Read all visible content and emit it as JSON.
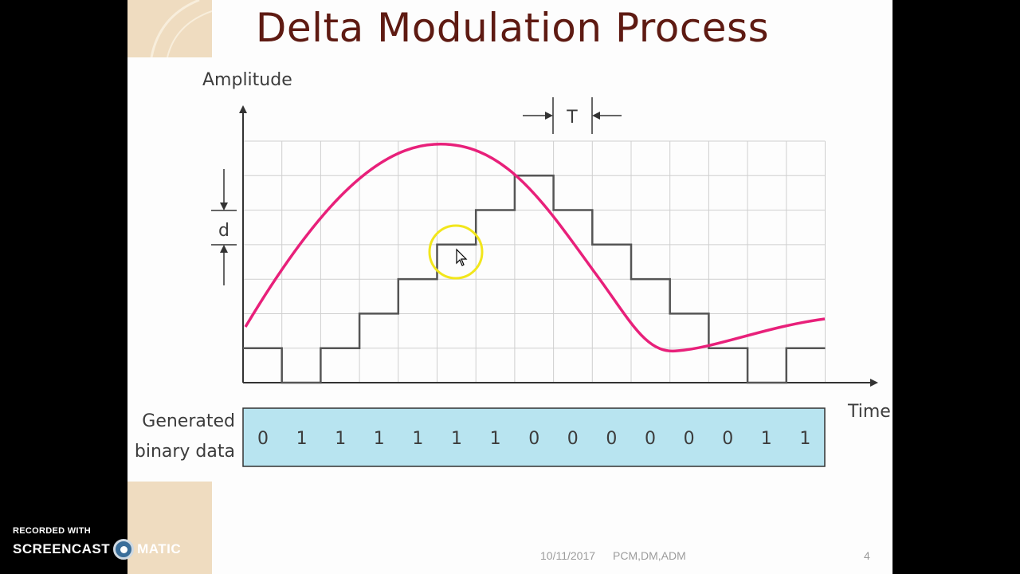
{
  "slide": {
    "title": "Delta Modulation Process",
    "footer": {
      "date": "10/11/2017",
      "topic": "PCM,DM,ADM",
      "page": "4"
    }
  },
  "diagram": {
    "amplitude_label": "Amplitude",
    "time_label": "Time",
    "step_label": "d",
    "period_label": "T",
    "binary_label_line1": "Generated",
    "binary_label_line2": "binary data",
    "bits": [
      "0",
      "1",
      "1",
      "1",
      "1",
      "1",
      "1",
      "0",
      "0",
      "0",
      "0",
      "0",
      "0",
      "1",
      "1"
    ],
    "signal_color": "#e8207a",
    "staircase_color": "#555555",
    "binary_box_color": "#b8e4f0"
  },
  "cursor": {
    "highlight_color": "#f2e61c"
  },
  "watermark": {
    "line1": "RECORDED WITH",
    "brand_left": "SCREENCAST",
    "brand_right": "MATIC"
  }
}
